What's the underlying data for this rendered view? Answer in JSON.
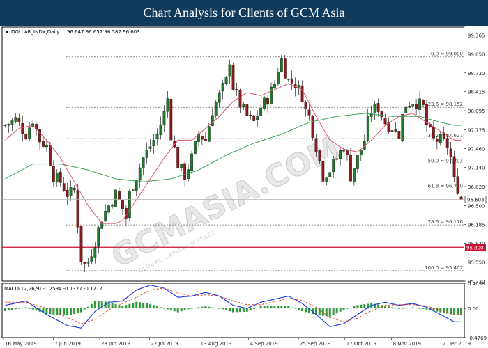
{
  "header": {
    "title": "Chart Analysis for Clients of GCM Asia"
  },
  "watermark": {
    "text": "GCMASIA.COM",
    "sub": "GLOBAL CAPITAL MARKET"
  },
  "colors": {
    "header_bg": "#123a5a",
    "bull": "#1f7a2a",
    "bear": "#8b1a1a",
    "ma_fast": "#d9536b",
    "ma_slow": "#3aa65a",
    "support_line": "#cc1133",
    "price_tag": "#cc1133",
    "macd_line": "#1f3de0",
    "macd_signal": "#e04a2a",
    "macd_hist": "#2e9a3a"
  },
  "chart_data": [
    {
      "type": "candlestick",
      "symbol_label": "DOLLAR_INDX,Daily",
      "ohlc_label": "96.647 96.657 96.587 96.603",
      "symbol": "DOLLAR_INDX",
      "timeframe": "Daily",
      "last": {
        "open": 96.647,
        "high": 96.657,
        "low": 96.587,
        "close": 96.603
      },
      "current_price_label": "96.603",
      "ylim": [
        95.23,
        99.5
      ],
      "y_ticks": [
        "99.365",
        "99.050",
        "98.730",
        "98.415",
        "98.095",
        "97.775",
        "97.460",
        "97.140",
        "96.820",
        "96.500",
        "96.185",
        "95.870",
        "95.550",
        "95.230"
      ],
      "x_ticks": [
        "16 May 2019",
        "7 Jun 2019",
        "28 Jun 2019",
        "22 Jul 2019",
        "13 Aug 2019",
        "4 Sep 2019",
        "25 Sep 2019",
        "17 Oct 2019",
        "8 Nov 2019",
        "2 Dec 2019"
      ],
      "fib_levels": [
        {
          "label": "0.0 = 99.000",
          "value": 99.0
        },
        {
          "label": "23.6 = 98.152",
          "value": 98.152
        },
        {
          "label": "38.2 = 97.627",
          "value": 97.627
        },
        {
          "label": "50.0 = 97.203",
          "value": 97.203
        },
        {
          "label": "61.8 = 96.780",
          "value": 96.78
        },
        {
          "label": "78.6 = 96.176",
          "value": 96.176
        },
        {
          "label": "100.0 = 95.407",
          "value": 95.407
        }
      ],
      "support": {
        "label": "95.800",
        "value": 95.8
      },
      "close_path": [
        [
          0,
          97.85
        ],
        [
          3,
          97.95
        ],
        [
          6,
          97.7
        ],
        [
          8,
          97.95
        ],
        [
          10,
          97.6
        ],
        [
          12,
          97.5
        ],
        [
          14,
          97.0
        ],
        [
          16,
          96.9
        ],
        [
          18,
          96.7
        ],
        [
          20,
          96.75
        ],
        [
          21,
          96.2
        ],
        [
          22,
          95.6
        ],
        [
          23,
          95.5
        ],
        [
          24,
          95.55
        ],
        [
          26,
          95.9
        ],
        [
          28,
          96.3
        ],
        [
          30,
          96.5
        ],
        [
          32,
          96.7
        ],
        [
          34,
          96.45
        ],
        [
          35,
          96.3
        ],
        [
          36,
          96.7
        ],
        [
          38,
          97.0
        ],
        [
          40,
          97.3
        ],
        [
          42,
          97.5
        ],
        [
          44,
          97.7
        ],
        [
          46,
          98.05
        ],
        [
          47,
          98.3
        ],
        [
          48,
          97.7
        ],
        [
          50,
          97.2
        ],
        [
          52,
          97.0
        ],
        [
          54,
          97.3
        ],
        [
          56,
          97.7
        ],
        [
          58,
          97.6
        ],
        [
          60,
          98.1
        ],
        [
          62,
          98.35
        ],
        [
          64,
          98.6
        ],
        [
          65,
          98.95
        ],
        [
          66,
          98.5
        ],
        [
          68,
          98.2
        ],
        [
          70,
          98.0
        ],
        [
          72,
          97.9
        ],
        [
          74,
          98.15
        ],
        [
          76,
          98.3
        ],
        [
          78,
          98.55
        ],
        [
          79,
          98.8
        ],
        [
          80,
          98.95
        ],
        [
          81,
          98.75
        ],
        [
          82,
          98.6
        ],
        [
          84,
          98.55
        ],
        [
          86,
          98.35
        ],
        [
          87,
          98.1
        ],
        [
          88,
          98.0
        ],
        [
          90,
          97.5
        ],
        [
          92,
          97.0
        ],
        [
          94,
          97.1
        ],
        [
          96,
          97.3
        ],
        [
          98,
          97.5
        ],
        [
          99,
          97.3
        ],
        [
          100,
          97.0
        ],
        [
          102,
          97.3
        ],
        [
          104,
          97.6
        ],
        [
          105,
          97.9
        ],
        [
          106,
          98.1
        ],
        [
          108,
          98.15
        ],
        [
          110,
          97.9
        ],
        [
          112,
          97.8
        ],
        [
          114,
          97.7
        ],
        [
          115,
          98.0
        ],
        [
          116,
          98.2
        ],
        [
          118,
          98.25
        ],
        [
          120,
          98.2
        ],
        [
          121,
          98.15
        ],
        [
          122,
          97.85
        ],
        [
          124,
          97.6
        ],
        [
          126,
          97.6
        ],
        [
          128,
          97.5
        ],
        [
          129,
          97.3
        ],
        [
          130,
          96.9
        ],
        [
          131,
          96.8
        ],
        [
          132,
          96.6
        ]
      ],
      "ma_fast_path": [
        [
          0,
          97.6
        ],
        [
          4,
          97.8
        ],
        [
          8,
          97.85
        ],
        [
          12,
          97.6
        ],
        [
          16,
          97.3
        ],
        [
          20,
          96.9
        ],
        [
          24,
          96.5
        ],
        [
          28,
          96.2
        ],
        [
          32,
          96.2
        ],
        [
          34,
          96.25
        ],
        [
          38,
          96.6
        ],
        [
          42,
          96.95
        ],
        [
          46,
          97.3
        ],
        [
          50,
          97.6
        ],
        [
          54,
          97.6
        ],
        [
          58,
          97.8
        ],
        [
          62,
          98.0
        ],
        [
          66,
          98.25
        ],
        [
          70,
          98.4
        ],
        [
          74,
          98.35
        ],
        [
          78,
          98.45
        ],
        [
          82,
          98.55
        ],
        [
          86,
          98.45
        ],
        [
          90,
          98.0
        ],
        [
          94,
          97.6
        ],
        [
          98,
          97.45
        ],
        [
          102,
          97.4
        ],
        [
          106,
          97.6
        ],
        [
          110,
          97.85
        ],
        [
          114,
          98.0
        ],
        [
          118,
          98.05
        ],
        [
          122,
          97.9
        ],
        [
          126,
          97.75
        ],
        [
          130,
          97.6
        ]
      ],
      "ma_slow_path": [
        [
          0,
          96.95
        ],
        [
          8,
          97.2
        ],
        [
          16,
          97.2
        ],
        [
          24,
          97.1
        ],
        [
          32,
          96.95
        ],
        [
          40,
          96.9
        ],
        [
          48,
          96.95
        ],
        [
          56,
          97.1
        ],
        [
          64,
          97.35
        ],
        [
          72,
          97.55
        ],
        [
          80,
          97.7
        ],
        [
          88,
          97.9
        ],
        [
          96,
          98.0
        ],
        [
          104,
          98.05
        ],
        [
          112,
          98.0
        ],
        [
          120,
          98.0
        ],
        [
          126,
          97.9
        ],
        [
          130,
          97.85
        ]
      ]
    },
    {
      "type": "macd",
      "label": "MACD(12,26,9) -0.2594 -0.1377 -0.1217",
      "params": [
        12,
        26,
        9
      ],
      "values": {
        "macd": -0.2594,
        "signal": -0.1377,
        "histogram": -0.1217
      },
      "ylim": [
        -0.4769,
        0.4098
      ],
      "y_ticks": [
        "0.4098",
        "0.00",
        "-0.4769"
      ],
      "macd_path": [
        [
          0,
          0.05
        ],
        [
          6,
          0.12
        ],
        [
          12,
          -0.1
        ],
        [
          18,
          -0.28
        ],
        [
          22,
          -0.32
        ],
        [
          26,
          -0.05
        ],
        [
          30,
          0.1
        ],
        [
          34,
          0.12
        ],
        [
          38,
          0.3
        ],
        [
          42,
          0.38
        ],
        [
          46,
          0.33
        ],
        [
          50,
          0.18
        ],
        [
          54,
          0.2
        ],
        [
          58,
          0.26
        ],
        [
          62,
          0.2
        ],
        [
          66,
          0.05
        ],
        [
          70,
          0.0
        ],
        [
          74,
          0.1
        ],
        [
          78,
          0.15
        ],
        [
          82,
          0.2
        ],
        [
          86,
          0.08
        ],
        [
          90,
          -0.1
        ],
        [
          94,
          -0.3
        ],
        [
          98,
          -0.25
        ],
        [
          102,
          -0.1
        ],
        [
          106,
          0.05
        ],
        [
          110,
          0.1
        ],
        [
          114,
          0.05
        ],
        [
          118,
          0.08
        ],
        [
          122,
          0.02
        ],
        [
          126,
          -0.1
        ],
        [
          130,
          -0.22
        ]
      ],
      "signal_path": [
        [
          0,
          0.1
        ],
        [
          6,
          0.1
        ],
        [
          12,
          0.0
        ],
        [
          18,
          -0.15
        ],
        [
          22,
          -0.25
        ],
        [
          26,
          -0.18
        ],
        [
          30,
          -0.02
        ],
        [
          34,
          0.08
        ],
        [
          38,
          0.18
        ],
        [
          42,
          0.3
        ],
        [
          46,
          0.33
        ],
        [
          50,
          0.25
        ],
        [
          54,
          0.2
        ],
        [
          58,
          0.22
        ],
        [
          62,
          0.2
        ],
        [
          66,
          0.12
        ],
        [
          70,
          0.06
        ],
        [
          74,
          0.06
        ],
        [
          78,
          0.11
        ],
        [
          82,
          0.16
        ],
        [
          86,
          0.13
        ],
        [
          90,
          0.02
        ],
        [
          94,
          -0.15
        ],
        [
          98,
          -0.22
        ],
        [
          102,
          -0.16
        ],
        [
          106,
          -0.04
        ],
        [
          110,
          0.05
        ],
        [
          114,
          0.06
        ],
        [
          118,
          0.06
        ],
        [
          122,
          0.04
        ],
        [
          126,
          -0.03
        ],
        [
          130,
          -0.1
        ]
      ]
    }
  ]
}
